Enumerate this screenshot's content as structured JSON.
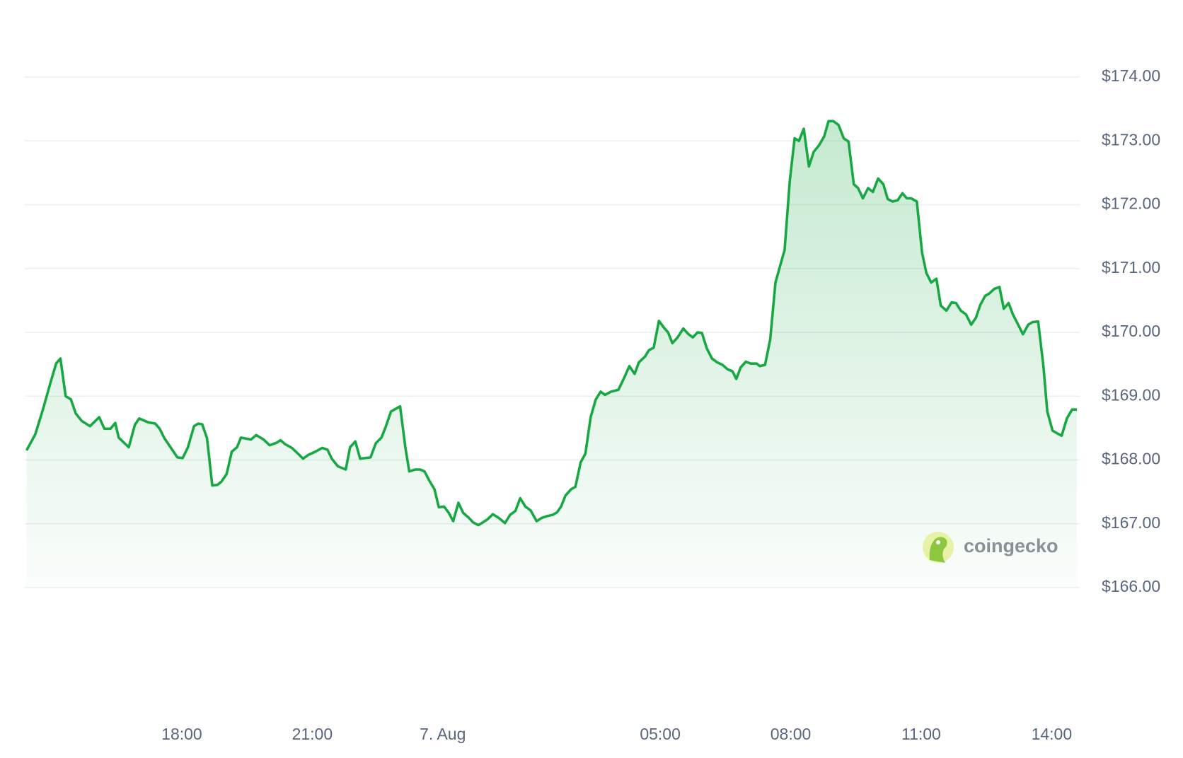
{
  "chart_data": {
    "type": "line",
    "color": "#18a843",
    "grid": true,
    "watermark": "coingecko",
    "x": [
      14.43,
      14.63,
      14.81,
      14.98,
      15.11,
      15.21,
      15.33,
      15.45,
      15.56,
      15.7,
      15.89,
      16.1,
      16.22,
      16.36,
      16.47,
      16.55,
      16.78,
      16.92,
      17.02,
      17.23,
      17.39,
      17.49,
      17.6,
      17.74,
      17.9,
      18.02,
      18.14,
      18.28,
      18.38,
      18.47,
      18.58,
      18.7,
      18.82,
      18.91,
      19.03,
      19.15,
      19.27,
      19.36,
      19.59,
      19.71,
      19.88,
      20.02,
      20.18,
      20.27,
      20.37,
      20.53,
      20.67,
      20.79,
      20.91,
      21.07,
      21.23,
      21.35,
      21.45,
      21.59,
      21.77,
      21.87,
      21.99,
      22.1,
      22.34,
      22.46,
      22.59,
      22.69,
      22.81,
      23.02,
      23.14,
      23.23,
      23.37,
      23.48,
      23.58,
      23.68,
      23.81,
      23.91,
      24.03,
      24.14,
      24.24,
      24.36,
      24.47,
      24.59,
      24.7,
      24.82,
      24.92,
      25.03,
      25.15,
      25.29,
      25.43,
      25.55,
      25.67,
      25.78,
      25.9,
      26.02,
      26.16,
      26.27,
      26.4,
      26.53,
      26.63,
      26.72,
      26.82,
      26.95,
      27.05,
      27.17,
      27.28,
      27.4,
      27.52,
      27.63,
      27.73,
      27.87,
      28.04,
      28.18,
      28.29,
      28.41,
      28.51,
      28.65,
      28.74,
      28.85,
      28.97,
      29.09,
      29.18,
      29.28,
      29.4,
      29.53,
      29.65,
      29.75,
      29.86,
      29.96,
      30.07,
      30.19,
      30.31,
      30.43,
      30.55,
      30.66,
      30.75,
      30.85,
      30.97,
      31.08,
      31.22,
      31.29,
      31.41,
      31.53,
      31.65,
      31.76,
      31.86,
      31.98,
      32.09,
      32.19,
      32.3,
      32.42,
      32.53,
      32.65,
      32.77,
      32.87,
      32.98,
      33.1,
      33.22,
      33.33,
      33.45,
      33.55,
      33.66,
      33.78,
      33.89,
      34.01,
      34.13,
      34.23,
      34.34,
      34.46,
      34.57,
      34.67,
      34.77,
      34.9,
      35.02,
      35.12,
      35.23,
      35.35,
      35.45,
      35.58,
      35.7,
      35.8,
      35.91,
      36.03,
      36.15,
      36.26,
      36.36,
      36.47,
      36.57,
      36.68,
      36.8,
      36.9,
      37.01,
      37.11,
      37.23,
      37.34,
      37.46,
      37.56,
      37.69,
      37.81,
      37.9,
      38.02,
      38.12,
      38.23,
      38.35,
      38.47,
      38.58
    ],
    "values": [
      168.15,
      168.4,
      168.8,
      169.21,
      169.51,
      169.59,
      169.0,
      168.95,
      168.73,
      168.61,
      168.53,
      168.67,
      168.49,
      168.49,
      168.58,
      168.35,
      168.2,
      168.55,
      168.65,
      168.59,
      168.57,
      168.49,
      168.34,
      168.2,
      168.04,
      168.03,
      168.2,
      168.53,
      168.57,
      168.56,
      168.34,
      167.6,
      167.61,
      167.66,
      167.78,
      168.13,
      168.2,
      168.35,
      168.32,
      168.39,
      168.32,
      168.23,
      168.27,
      168.31,
      168.25,
      168.19,
      168.1,
      168.02,
      168.08,
      168.13,
      168.19,
      168.16,
      168.02,
      167.9,
      167.85,
      168.2,
      168.29,
      168.02,
      168.04,
      168.26,
      168.35,
      168.52,
      168.76,
      168.84,
      168.2,
      167.82,
      167.85,
      167.85,
      167.82,
      167.69,
      167.54,
      167.26,
      167.27,
      167.17,
      167.04,
      167.33,
      167.17,
      167.1,
      167.02,
      166.98,
      167.02,
      167.07,
      167.15,
      167.09,
      167.01,
      167.14,
      167.2,
      167.4,
      167.27,
      167.21,
      167.04,
      167.09,
      167.12,
      167.14,
      167.18,
      167.27,
      167.44,
      167.54,
      167.58,
      167.96,
      168.1,
      168.67,
      168.95,
      169.07,
      169.02,
      169.07,
      169.1,
      169.3,
      169.47,
      169.35,
      169.53,
      169.62,
      169.72,
      169.76,
      170.18,
      170.07,
      170.0,
      169.83,
      169.92,
      170.06,
      169.97,
      169.92,
      170.0,
      169.99,
      169.75,
      169.59,
      169.53,
      169.49,
      169.42,
      169.39,
      169.27,
      169.45,
      169.54,
      169.51,
      169.51,
      169.47,
      169.49,
      169.89,
      170.78,
      171.05,
      171.29,
      172.38,
      173.04,
      173.0,
      173.19,
      172.6,
      172.83,
      172.93,
      173.07,
      173.31,
      173.31,
      173.25,
      173.04,
      172.99,
      172.32,
      172.26,
      172.1,
      172.26,
      172.2,
      172.41,
      172.32,
      172.09,
      172.05,
      172.07,
      172.18,
      172.1,
      172.1,
      172.05,
      171.25,
      170.93,
      170.78,
      170.84,
      170.42,
      170.34,
      170.47,
      170.46,
      170.34,
      170.28,
      170.12,
      170.23,
      170.43,
      170.57,
      170.61,
      170.68,
      170.71,
      170.37,
      170.46,
      170.28,
      170.12,
      169.97,
      170.12,
      170.16,
      170.17,
      169.47,
      168.76,
      168.46,
      168.42,
      168.38,
      168.65,
      168.79,
      168.79
    ],
    "xlim": [
      14.43,
      38.58
    ],
    "xticks": [
      {
        "value": 18,
        "label": "18:00"
      },
      {
        "value": 21,
        "label": "21:00"
      },
      {
        "value": 24,
        "label": "7. Aug"
      },
      {
        "value": 29,
        "label": "05:00"
      },
      {
        "value": 32,
        "label": "08:00"
      },
      {
        "value": 35,
        "label": "11:00"
      },
      {
        "value": 38,
        "label": "14:00"
      }
    ],
    "ylim": [
      166,
      174
    ],
    "yticks": [
      {
        "value": 166,
        "label": "$166.00"
      },
      {
        "value": 167,
        "label": "$167.00"
      },
      {
        "value": 168,
        "label": "$168.00"
      },
      {
        "value": 169,
        "label": "$169.00"
      },
      {
        "value": 170,
        "label": "$170.00"
      },
      {
        "value": 171,
        "label": "$171.00"
      },
      {
        "value": 172,
        "label": "$172.00"
      },
      {
        "value": 173,
        "label": "$173.00"
      },
      {
        "value": 174,
        "label": "$174.00"
      }
    ]
  }
}
